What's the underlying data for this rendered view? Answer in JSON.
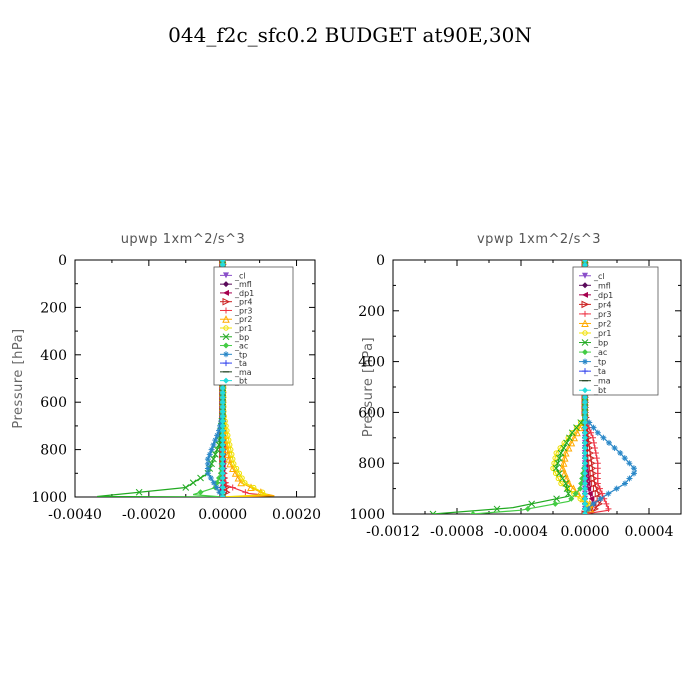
{
  "title": "044_f2c_sfc0.2  BUDGET at90E,30N",
  "chart_data": [
    {
      "type": "line",
      "title": "upwp   1xm^2/s^3",
      "ylabel": "Pressure [hPa]",
      "xlim": [
        -0.004,
        0.0025
      ],
      "ylim": [
        1000,
        0
      ],
      "y_inverted": true,
      "xticks": [
        -0.004,
        -0.002,
        0.0,
        0.002
      ],
      "xtick_labels": [
        "-0.0040",
        "-0.0020",
        "0.0000",
        "0.0020"
      ],
      "yticks": [
        0,
        200,
        400,
        600,
        800,
        1000
      ],
      "ytick_labels": [
        "0",
        "200",
        "400",
        "600",
        "800",
        "1000"
      ],
      "legend_position": "top-right",
      "series": [
        {
          "name": "_cl",
          "color": "#8a4fc9",
          "marker": "triangle-down",
          "values": [
            [
              0,
              0
            ],
            [
              0,
              200
            ],
            [
              0,
              400
            ],
            [
              0,
              600
            ],
            [
              0,
              800
            ],
            [
              0,
              950
            ],
            [
              0,
              1000
            ]
          ]
        },
        {
          "name": "_mfl",
          "color": "#5a0a5a",
          "marker": "diamond",
          "values": [
            [
              0,
              0
            ],
            [
              0,
              200
            ],
            [
              0,
              400
            ],
            [
              0,
              600
            ],
            [
              0,
              800
            ],
            [
              0,
              950
            ],
            [
              0,
              1000
            ]
          ]
        },
        {
          "name": "_dp1",
          "color": "#a6004e",
          "marker": "triangle-left",
          "values": [
            [
              0,
              0
            ],
            [
              0,
              400
            ],
            [
              0,
              700
            ],
            [
              0,
              850
            ],
            [
              -3e-05,
              950
            ],
            [
              -8e-05,
              980
            ],
            [
              0,
              1000
            ]
          ]
        },
        {
          "name": "_pr4",
          "color": "#cc2222",
          "marker": "triangle-right",
          "values": [
            [
              0,
              0
            ],
            [
              0,
              600
            ],
            [
              0,
              850
            ],
            [
              5e-05,
              940
            ],
            [
              0.00012,
              975
            ],
            [
              5e-05,
              995
            ],
            [
              0,
              1000
            ]
          ]
        },
        {
          "name": "_pr3",
          "color": "#ee3344",
          "marker": "plus",
          "values": [
            [
              0,
              0
            ],
            [
              0,
              700
            ],
            [
              0,
              880
            ],
            [
              0.0001,
              950
            ],
            [
              0.0007,
              985
            ],
            [
              0.0013,
              995
            ],
            [
              0,
              1000
            ]
          ]
        },
        {
          "name": "_pr2",
          "color": "#ffaa00",
          "marker": "triangle-up",
          "values": [
            [
              0,
              0
            ],
            [
              0,
              650
            ],
            [
              5e-05,
              750
            ],
            [
              0.0002,
              860
            ],
            [
              0.0005,
              940
            ],
            [
              0.0011,
              985
            ],
            [
              0.0014,
              995
            ],
            [
              0,
              1000
            ]
          ]
        },
        {
          "name": "_pr1",
          "color": "#f0e000",
          "marker": "circle",
          "values": [
            [
              0,
              0
            ],
            [
              3e-05,
              650
            ],
            [
              0.00015,
              750
            ],
            [
              0.0003,
              860
            ],
            [
              0.0006,
              940
            ],
            [
              0.0012,
              990
            ],
            [
              0,
              1000
            ]
          ]
        },
        {
          "name": "_bp",
          "color": "#22aa22",
          "marker": "x",
          "values": [
            [
              0,
              0
            ],
            [
              0,
              650
            ],
            [
              -0.0001,
              780
            ],
            [
              -0.0004,
              900
            ],
            [
              -0.001,
              960
            ],
            [
              -0.0034,
              998
            ],
            [
              0,
              1000
            ]
          ]
        },
        {
          "name": "_ac",
          "color": "#44cc44",
          "marker": "diamond",
          "values": [
            [
              0,
              0
            ],
            [
              0,
              800
            ],
            [
              -5e-05,
              900
            ],
            [
              -0.0002,
              960
            ],
            [
              -0.0008,
              990
            ],
            [
              0,
              1000
            ]
          ]
        },
        {
          "name": "_tp",
          "color": "#2a88c8",
          "marker": "star",
          "values": [
            [
              0,
              0
            ],
            [
              0,
              650
            ],
            [
              -0.0001,
              720
            ],
            [
              -0.0004,
              840
            ],
            [
              -0.0004,
              900
            ],
            [
              -0.0002,
              950
            ],
            [
              -5e-05,
              990
            ],
            [
              0,
              1000
            ]
          ]
        },
        {
          "name": "_ta",
          "color": "#3344ee",
          "marker": "plus",
          "values": [
            [
              0,
              0
            ],
            [
              0,
              200
            ],
            [
              0,
              400
            ],
            [
              0,
              600
            ],
            [
              0,
              800
            ],
            [
              0,
              950
            ],
            [
              0,
              1000
            ]
          ]
        },
        {
          "name": "_ma",
          "color": "#224422",
          "marker": "dash",
          "values": [
            [
              0,
              0
            ],
            [
              0,
              300
            ],
            [
              0,
              600
            ],
            [
              0,
              900
            ],
            [
              0,
              1000
            ]
          ]
        },
        {
          "name": "_bt",
          "color": "#22dddd",
          "marker": "diamond",
          "values": [
            [
              0,
              0
            ],
            [
              0,
              300
            ],
            [
              0,
              600
            ],
            [
              0,
              900
            ],
            [
              0,
              1000
            ]
          ]
        }
      ]
    },
    {
      "type": "line",
      "title": "vpwp   1xm^2/s^3",
      "ylabel": "Pressure [hPa]",
      "xlim": [
        -0.0012,
        0.0006
      ],
      "ylim": [
        1000,
        0
      ],
      "y_inverted": true,
      "xticks": [
        -0.0012,
        -0.0008,
        -0.0004,
        0.0,
        0.0004
      ],
      "xtick_labels": [
        "-0.0012",
        "-0.0008",
        "-0.0004",
        "0.0000",
        "0.0004"
      ],
      "yticks": [
        0,
        200,
        400,
        600,
        800,
        1000
      ],
      "ytick_labels": [
        "0",
        "200",
        "400",
        "600",
        "800",
        "1000"
      ],
      "legend_position": "top-right",
      "series": [
        {
          "name": "_cl",
          "color": "#8a4fc9",
          "marker": "triangle-down",
          "values": [
            [
              0,
              0
            ],
            [
              0,
              200
            ],
            [
              0,
              400
            ],
            [
              0,
              600
            ],
            [
              0,
              800
            ],
            [
              0,
              950
            ],
            [
              0,
              1000
            ]
          ]
        },
        {
          "name": "_mfl",
          "color": "#5a0a5a",
          "marker": "diamond",
          "values": [
            [
              0,
              0
            ],
            [
              0,
              200
            ],
            [
              0,
              400
            ],
            [
              0,
              600
            ],
            [
              0,
              800
            ],
            [
              0,
              950
            ],
            [
              0,
              1000
            ]
          ]
        },
        {
          "name": "_dp1",
          "color": "#a6004e",
          "marker": "triangle-left",
          "values": [
            [
              0,
              0
            ],
            [
              0,
              600
            ],
            [
              0,
              800
            ],
            [
              2e-05,
              900
            ],
            [
              5e-05,
              960
            ],
            [
              2e-05,
              995
            ],
            [
              0,
              1000
            ]
          ]
        },
        {
          "name": "_pr4",
          "color": "#cc2222",
          "marker": "triangle-right",
          "values": [
            [
              0,
              0
            ],
            [
              0,
              600
            ],
            [
              3e-05,
              750
            ],
            [
              6e-05,
              880
            ],
            [
              0.0001,
              950
            ],
            [
              5e-05,
              990
            ],
            [
              0,
              1000
            ]
          ]
        },
        {
          "name": "_pr3",
          "color": "#ee3344",
          "marker": "plus",
          "values": [
            [
              0,
              0
            ],
            [
              0,
              620
            ],
            [
              5e-05,
              700
            ],
            [
              8e-05,
              800
            ],
            [
              8e-05,
              880
            ],
            [
              0.00012,
              940
            ],
            [
              0.00015,
              985
            ],
            [
              0,
              1000
            ]
          ]
        },
        {
          "name": "_pr2",
          "color": "#ffaa00",
          "marker": "triangle-up",
          "values": [
            [
              0,
              0
            ],
            [
              0,
              620
            ],
            [
              -5e-05,
              680
            ],
            [
              -0.00012,
              760
            ],
            [
              -0.00014,
              820
            ],
            [
              -0.0001,
              880
            ],
            [
              -3e-05,
              930
            ],
            [
              5e-05,
              970
            ],
            [
              0,
              1000
            ]
          ]
        },
        {
          "name": "_pr1",
          "color": "#f0e000",
          "marker": "circle",
          "values": [
            [
              0,
              0
            ],
            [
              0,
              620
            ],
            [
              -8e-05,
              680
            ],
            [
              -0.00018,
              760
            ],
            [
              -0.0002,
              820
            ],
            [
              -0.00015,
              880
            ],
            [
              -5e-05,
              930
            ],
            [
              3e-05,
              970
            ],
            [
              0,
              1000
            ]
          ]
        },
        {
          "name": "_bp",
          "color": "#22aa22",
          "marker": "x",
          "values": [
            [
              0,
              0
            ],
            [
              0,
              620
            ],
            [
              -8e-05,
              680
            ],
            [
              -0.00015,
              760
            ],
            [
              -0.00018,
              820
            ],
            [
              -0.00012,
              880
            ],
            [
              -0.0001,
              930
            ],
            [
              -0.00045,
              975
            ],
            [
              -0.00095,
              1000
            ]
          ]
        },
        {
          "name": "_ac",
          "color": "#44cc44",
          "marker": "diamond",
          "values": [
            [
              0,
              0
            ],
            [
              0,
              800
            ],
            [
              -3e-05,
              900
            ],
            [
              -0.0001,
              950
            ],
            [
              -0.0004,
              985
            ],
            [
              -0.0007,
              1000
            ]
          ]
        },
        {
          "name": "_tp",
          "color": "#2a88c8",
          "marker": "star",
          "values": [
            [
              0,
              0
            ],
            [
              0,
              620
            ],
            [
              8e-05,
              680
            ],
            [
              0.00022,
              760
            ],
            [
              0.00032,
              830
            ],
            [
              0.00025,
              880
            ],
            [
              0.00012,
              930
            ],
            [
              3e-05,
              970
            ],
            [
              0,
              1000
            ]
          ]
        },
        {
          "name": "_ta",
          "color": "#3344ee",
          "marker": "plus",
          "values": [
            [
              0,
              0
            ],
            [
              0,
              200
            ],
            [
              0,
              400
            ],
            [
              0,
              600
            ],
            [
              0,
              800
            ],
            [
              0,
              950
            ],
            [
              0,
              1000
            ]
          ]
        },
        {
          "name": "_ma",
          "color": "#224422",
          "marker": "dash",
          "values": [
            [
              0,
              0
            ],
            [
              0,
              300
            ],
            [
              0,
              600
            ],
            [
              0,
              900
            ],
            [
              0,
              1000
            ]
          ]
        },
        {
          "name": "_bt",
          "color": "#22dddd",
          "marker": "diamond",
          "values": [
            [
              0,
              0
            ],
            [
              0,
              300
            ],
            [
              0,
              600
            ],
            [
              0,
              900
            ],
            [
              0,
              1000
            ]
          ]
        }
      ]
    }
  ]
}
